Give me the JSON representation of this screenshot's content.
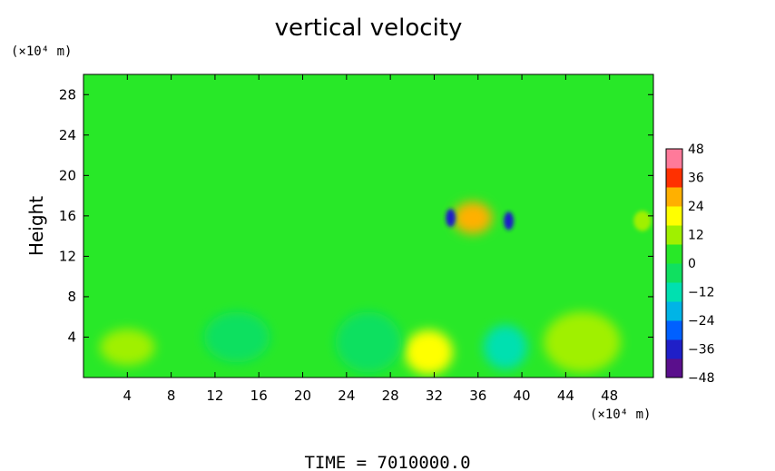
{
  "chart_data": {
    "type": "heatmap",
    "title": "vertical velocity",
    "ylabel": "Height",
    "xlabel": "",
    "x_unit": "(×10⁴ m)",
    "y_unit": "(×10⁴ m)",
    "xlim": [
      0,
      52
    ],
    "ylim": [
      0,
      30
    ],
    "x_ticks": [
      4,
      8,
      12,
      16,
      20,
      24,
      28,
      32,
      36,
      40,
      44,
      48
    ],
    "y_ticks": [
      4,
      8,
      12,
      16,
      20,
      24,
      28
    ],
    "colorbar": {
      "min": -48,
      "max": 48,
      "ticks": [
        48,
        36,
        24,
        12,
        0,
        -12,
        -24,
        -36,
        -48
      ],
      "colors": [
        "#5a0f8c",
        "#1f1fc8",
        "#0060ff",
        "#00b4e6",
        "#00e0b0",
        "#10e060",
        "#28e828",
        "#a0f000",
        "#ffff00",
        "#ffb000",
        "#ff3000",
        "#ff7a9a"
      ]
    },
    "background_value": 0,
    "features": [
      {
        "x": 31.5,
        "y": 2.5,
        "value": 20,
        "rx": 2.2,
        "ry": 2.2
      },
      {
        "x": 45.5,
        "y": 3.5,
        "value": 10,
        "rx": 3.5,
        "ry": 3.0
      },
      {
        "x": 4,
        "y": 3,
        "value": 8,
        "rx": 2.5,
        "ry": 1.8
      },
      {
        "x": 38.5,
        "y": 3,
        "value": -10,
        "rx": 2.0,
        "ry": 2.2
      },
      {
        "x": 26,
        "y": 3.5,
        "value": -6,
        "rx": 3.0,
        "ry": 3.0
      },
      {
        "x": 14,
        "y": 4,
        "value": -4,
        "rx": 3.0,
        "ry": 2.5
      },
      {
        "x": 35.5,
        "y": 15.8,
        "value": 24,
        "rx": 1.8,
        "ry": 1.6
      },
      {
        "x": 33.5,
        "y": 15.8,
        "value": -40,
        "rx": 0.45,
        "ry": 0.9
      },
      {
        "x": 38.8,
        "y": 15.5,
        "value": -40,
        "rx": 0.45,
        "ry": 0.9
      },
      {
        "x": 51,
        "y": 15.5,
        "value": 14,
        "rx": 0.8,
        "ry": 1.0
      }
    ],
    "time": "TIME  =  7010000.0"
  }
}
